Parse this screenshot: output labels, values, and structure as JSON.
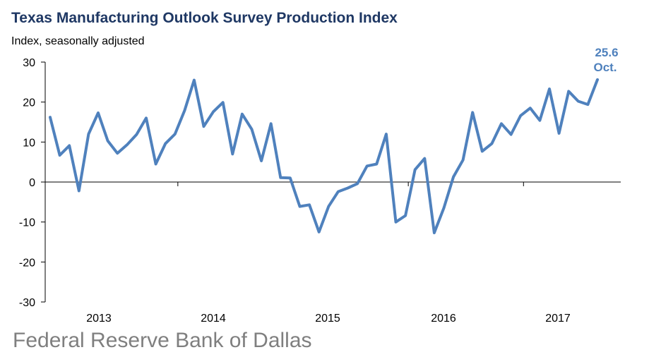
{
  "title": "Texas Manufacturing Outlook Survey Production Index",
  "subtitle": "Index, seasonally adjusted",
  "footer": "Federal Reserve Bank of Dallas",
  "colors": {
    "line": "#4f81bd",
    "title": "#1f3864",
    "footer": "#7f7f7f"
  },
  "chart_data": {
    "type": "line",
    "title": "Texas Manufacturing Outlook Survey Production Index",
    "ylabel": "Index, seasonally adjusted",
    "ylim": [
      -30,
      30
    ],
    "yticks": [
      -30,
      -20,
      -10,
      0,
      10,
      20,
      30
    ],
    "year_labels": [
      "2013",
      "2014",
      "2015",
      "2016",
      "2017"
    ],
    "grid": false,
    "series": [
      {
        "values": [
          16.2,
          6.7,
          9.1,
          -2.2,
          12.0,
          17.3,
          10.3,
          7.2,
          9.3,
          11.9,
          16.0,
          4.5,
          9.6,
          12.0,
          17.9,
          25.5,
          13.9,
          17.6,
          19.9,
          7.0,
          17.0,
          13.2,
          5.3,
          14.6,
          1.1,
          1.0,
          -6.1,
          -5.7,
          -12.5,
          -6.1,
          -2.4,
          -1.5,
          -0.4,
          4.0,
          4.5,
          12.0,
          -10.0,
          -8.4,
          3.1,
          5.9,
          -12.7,
          -6.5,
          1.3,
          5.5,
          17.4,
          7.7,
          9.6,
          14.6,
          11.9,
          16.6,
          18.5,
          15.4,
          23.3,
          12.2,
          22.7,
          20.2,
          19.4,
          25.6
        ]
      }
    ],
    "annotation": {
      "value": "25.6",
      "label": "Oct."
    }
  }
}
